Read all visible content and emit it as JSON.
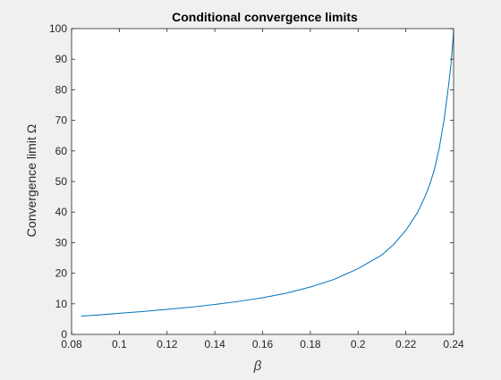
{
  "chart_data": {
    "type": "line",
    "title": "Conditional convergence limits",
    "xlabel": "β",
    "ylabel": "Convergence limit Ω",
    "xlim": [
      0.08,
      0.24
    ],
    "ylim": [
      0,
      100
    ],
    "xticks": [
      0.08,
      0.1,
      0.12,
      0.14,
      0.16,
      0.18,
      0.2,
      0.22,
      0.24
    ],
    "xtick_labels": [
      "0.08",
      "0.1",
      "0.12",
      "0.14",
      "0.16",
      "0.18",
      "0.2",
      "0.22",
      "0.24"
    ],
    "yticks": [
      0,
      10,
      20,
      30,
      40,
      50,
      60,
      70,
      80,
      90,
      100
    ],
    "ytick_labels": [
      "0",
      "10",
      "20",
      "30",
      "40",
      "50",
      "60",
      "70",
      "80",
      "90",
      "100"
    ],
    "grid": false,
    "series": [
      {
        "color": "#0072bd",
        "x": [
          0.084,
          0.09,
          0.1,
          0.11,
          0.12,
          0.13,
          0.14,
          0.15,
          0.16,
          0.17,
          0.18,
          0.19,
          0.2,
          0.21,
          0.215,
          0.22,
          0.225,
          0.228,
          0.23,
          0.232,
          0.234,
          0.236,
          0.238,
          0.239,
          0.24
        ],
        "y": [
          6.0,
          6.3,
          6.9,
          7.5,
          8.2,
          8.9,
          9.8,
          10.8,
          12.0,
          13.5,
          15.5,
          18.0,
          21.5,
          26.0,
          29.5,
          34.0,
          40.0,
          45.0,
          49.0,
          54.0,
          61.0,
          70.0,
          82.0,
          89.0,
          99.0
        ]
      }
    ]
  }
}
